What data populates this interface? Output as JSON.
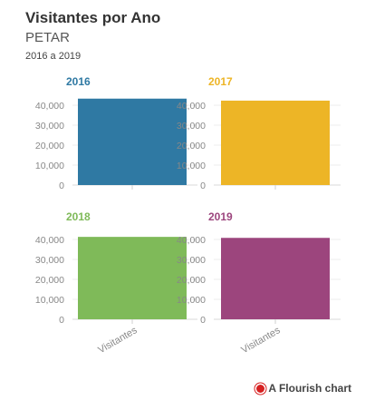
{
  "header": {
    "title": "Visitantes por Ano",
    "subtitle": "PETAR",
    "note": "2016 a 2019"
  },
  "attribution": {
    "text": "A Flourish chart"
  },
  "chart_data": {
    "type": "bar",
    "layout": "small-multiples",
    "categories": [
      "Visitantes"
    ],
    "ylim": [
      0,
      45000
    ],
    "yticks": [
      0,
      10000,
      20000,
      30000,
      40000
    ],
    "ytick_labels": [
      "0",
      "10,000",
      "20,000",
      "30,000",
      "40,000"
    ],
    "grid": true,
    "panels": [
      {
        "title": "2016",
        "color": "#2f79a3",
        "values": [
          43300
        ]
      },
      {
        "title": "2017",
        "color": "#edb526",
        "values": [
          42300
        ]
      },
      {
        "title": "2018",
        "color": "#7fba59",
        "values": [
          41300
        ]
      },
      {
        "title": "2019",
        "color": "#9c457d",
        "values": [
          40800
        ]
      }
    ]
  }
}
